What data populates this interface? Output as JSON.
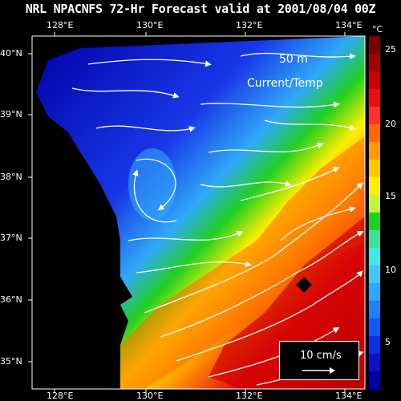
{
  "title": "NRL NPACNFS 72-Hr Forecast valid at 2001/08/04 00Z",
  "depth_label": "50 m",
  "field_label": "Current/Temp",
  "longitude_ticks": [
    "128°E",
    "130°E",
    "132°E",
    "134°E"
  ],
  "latitude_ticks": [
    "40°N",
    "39°N",
    "38°N",
    "37°N",
    "36°N",
    "35°N"
  ],
  "colorbar": {
    "unit": "°C",
    "tick_labels": [
      "25",
      "20",
      "15",
      "10",
      "5"
    ],
    "colors": [
      "#7a0000",
      "#a00000",
      "#c80000",
      "#e61010",
      "#ff3030",
      "#ff6a00",
      "#ff9a00",
      "#ffc800",
      "#ffee00",
      "#c8f040",
      "#20d020",
      "#40e0a0",
      "#40e8e8",
      "#40c8f0",
      "#30a8f8",
      "#2080f8",
      "#1058f0",
      "#1030e0",
      "#1010c8",
      "#0000a8"
    ]
  },
  "legend": {
    "label": "10 cm/s"
  }
}
